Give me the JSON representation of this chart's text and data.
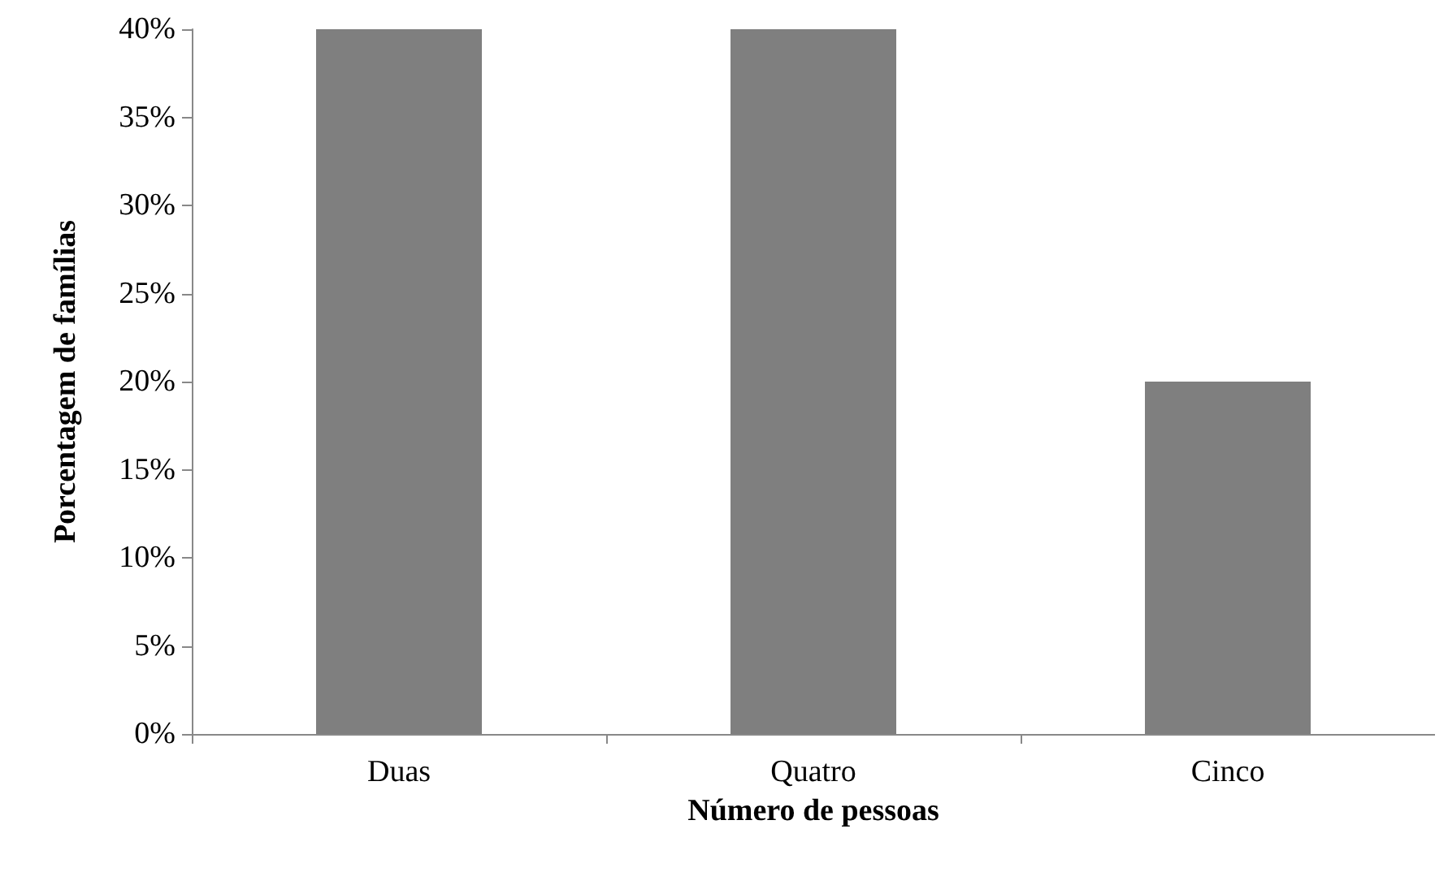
{
  "chart_data": {
    "type": "bar",
    "xlabel": "Número de pessoas",
    "ylabel": "Porcentagem de famílias",
    "categories": [
      "Duas",
      "Quatro",
      "Cinco"
    ],
    "values": [
      40,
      40,
      20
    ],
    "color": "#7f7f7f",
    "ylim": [
      0,
      40
    ],
    "yticks": [
      {
        "value": 0,
        "label": "0%"
      },
      {
        "value": 5,
        "label": "5%"
      },
      {
        "value": 10,
        "label": "10%"
      },
      {
        "value": 15,
        "label": "15%"
      },
      {
        "value": 20,
        "label": "20%"
      },
      {
        "value": 25,
        "label": "25%"
      },
      {
        "value": 30,
        "label": "30%"
      },
      {
        "value": 35,
        "label": "35%"
      },
      {
        "value": 40,
        "label": "40%"
      }
    ],
    "grid": false
  }
}
